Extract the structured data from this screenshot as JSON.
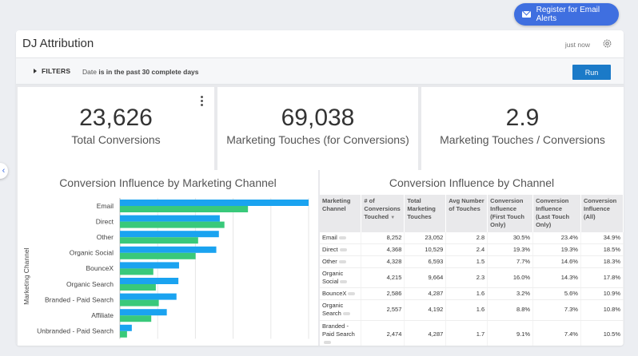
{
  "alert_button": {
    "label": "Register for Email Alerts",
    "icon": "mail-icon"
  },
  "dashboard": {
    "title": "DJ Attribution",
    "updated": "just now",
    "settings_icon": "gear-icon"
  },
  "filterbar": {
    "filters_label": "FILTERS",
    "date_prefix": "Date ",
    "date_condition": "is in the past 30 complete days",
    "run_label": "Run"
  },
  "kpis": [
    {
      "value": "23,626",
      "label": "Total Conversions"
    },
    {
      "value": "69,038",
      "label": "Marketing Touches (for Conversions)"
    },
    {
      "value": "2.9",
      "label": "Marketing Touches / Conversions"
    }
  ],
  "colors": {
    "accent": "#3f6fe0",
    "bar_blue": "#1aa3f0",
    "bar_green": "#39c97a",
    "run": "#1b7ac8"
  },
  "chart_data": {
    "type": "bar",
    "orientation": "horizontal",
    "title": "Conversion Influence by Marketing Channel",
    "ylabel": "Marketing Channel",
    "categories": [
      "Email",
      "Direct",
      "Other",
      "Organic Social",
      "BounceX",
      "Organic Search",
      "Branded - Paid Search",
      "Affiliate",
      "Unbranded - Paid Search"
    ],
    "series": [
      {
        "color": "#1aa3f0",
        "values": [
          8252,
          4368,
          4328,
          4215,
          2586,
          2557,
          2474,
          2050,
          520
        ]
      },
      {
        "color": "#39c97a",
        "values": [
          5600,
          4570,
          3420,
          3310,
          1460,
          1570,
          1700,
          1370,
          310
        ]
      }
    ],
    "xlim": [
      0,
      8252
    ],
    "grid": true
  },
  "table": {
    "title": "Conversion Influence by Channel",
    "columns": [
      "Marketing Channel",
      "# of Conversions Touched",
      "Total Marketing Touches",
      "Avg Number of Touches",
      "Conversion Influence (First Touch Only)",
      "Conversion Influence (Last Touch Only)",
      "Conversion Influence (All)"
    ],
    "sort_indicator": "▼",
    "rows": [
      [
        "Email",
        "8,252",
        "23,052",
        "2.8",
        "30.5%",
        "23.4%",
        "34.9%"
      ],
      [
        "Direct",
        "4,368",
        "10,529",
        "2.4",
        "19.3%",
        "19.3%",
        "18.5%"
      ],
      [
        "Other",
        "4,328",
        "6,593",
        "1.5",
        "7.7%",
        "14.6%",
        "18.3%"
      ],
      [
        "Organic Social",
        "4,215",
        "9,664",
        "2.3",
        "16.0%",
        "14.3%",
        "17.8%"
      ],
      [
        "BounceX",
        "2,586",
        "4,287",
        "1.6",
        "3.2%",
        "5.6%",
        "10.9%"
      ],
      [
        "Organic Search",
        "2,557",
        "4,192",
        "1.6",
        "8.8%",
        "7.3%",
        "10.8%"
      ],
      [
        "Branded - Paid Search",
        "2,474",
        "4,287",
        "1.7",
        "9.1%",
        "7.4%",
        "10.5%"
      ]
    ]
  }
}
